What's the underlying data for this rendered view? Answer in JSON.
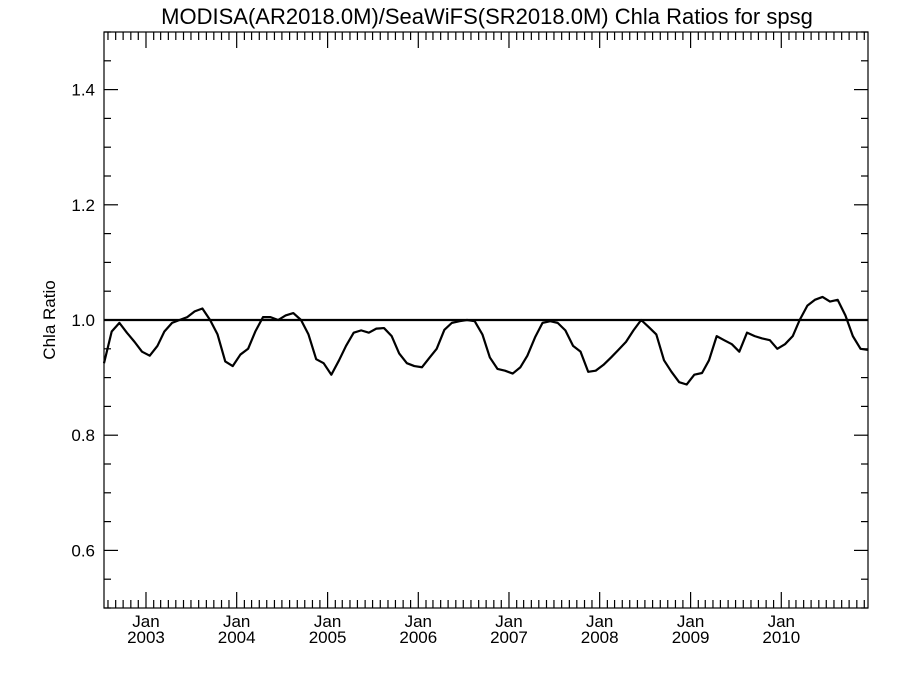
{
  "chart_data": {
    "type": "line",
    "title": "MODISA(AR2018.0M)/SeaWiFS(SR2018.0M)  Chla Ratios for spsg",
    "xlabel": "",
    "ylabel": "Chla Ratio",
    "xlim": [
      "2002-07-16",
      "2010-12-16"
    ],
    "ylim": [
      0.5,
      1.5
    ],
    "yticks": [
      {
        "value": 0.6,
        "label": "0.6"
      },
      {
        "value": 0.8,
        "label": "0.8"
      },
      {
        "value": 1.0,
        "label": "1.0"
      },
      {
        "value": 1.2,
        "label": "1.2"
      },
      {
        "value": 1.4,
        "label": "1.4"
      }
    ],
    "xticks": [
      {
        "date": "2003-01-01",
        "month": "Jan",
        "year": "2003"
      },
      {
        "date": "2004-01-01",
        "month": "Jan",
        "year": "2004"
      },
      {
        "date": "2005-01-01",
        "month": "Jan",
        "year": "2005"
      },
      {
        "date": "2006-01-01",
        "month": "Jan",
        "year": "2006"
      },
      {
        "date": "2007-01-01",
        "month": "Jan",
        "year": "2007"
      },
      {
        "date": "2008-01-01",
        "month": "Jan",
        "year": "2008"
      },
      {
        "date": "2009-01-01",
        "month": "Jan",
        "year": "2009"
      },
      {
        "date": "2010-01-01",
        "month": "Jan",
        "year": "2010"
      }
    ],
    "reference_line": {
      "y": 1.0
    },
    "series": [
      {
        "x": [
          "2002-07-16",
          "2002-08-16",
          "2002-09-16",
          "2002-10-16",
          "2002-11-16",
          "2002-12-16",
          "2003-01-16",
          "2003-02-16",
          "2003-03-16",
          "2003-04-16",
          "2003-05-16",
          "2003-06-16",
          "2003-07-16",
          "2003-08-16",
          "2003-09-16",
          "2003-10-16",
          "2003-11-16",
          "2003-12-16",
          "2004-01-16",
          "2004-02-16",
          "2004-03-16",
          "2004-04-16",
          "2004-05-16",
          "2004-06-16",
          "2004-07-16",
          "2004-08-16",
          "2004-09-16",
          "2004-10-16",
          "2004-11-16",
          "2004-12-16",
          "2005-01-16",
          "2005-02-16",
          "2005-03-16",
          "2005-04-16",
          "2005-05-16",
          "2005-06-16",
          "2005-07-16",
          "2005-08-16",
          "2005-09-16",
          "2005-10-16",
          "2005-11-16",
          "2005-12-16",
          "2006-01-16",
          "2006-02-16",
          "2006-03-16",
          "2006-04-16",
          "2006-05-16",
          "2006-06-16",
          "2006-07-16",
          "2006-08-16",
          "2006-09-16",
          "2006-10-16",
          "2006-11-16",
          "2006-12-16",
          "2007-01-16",
          "2007-02-16",
          "2007-03-16",
          "2007-04-16",
          "2007-05-16",
          "2007-06-16",
          "2007-07-16",
          "2007-08-16",
          "2007-09-16",
          "2007-10-16",
          "2007-11-16",
          "2007-12-16",
          "2008-01-16",
          "2008-02-16",
          "2008-03-16",
          "2008-04-16",
          "2008-05-16",
          "2008-06-16",
          "2008-07-16",
          "2008-08-16",
          "2008-09-16",
          "2008-10-16",
          "2008-11-16",
          "2008-12-16",
          "2009-01-16",
          "2009-02-16",
          "2009-03-16",
          "2009-04-16",
          "2009-05-16",
          "2009-06-16",
          "2009-07-16",
          "2009-08-16",
          "2009-09-16",
          "2009-10-16",
          "2009-11-16",
          "2009-12-16",
          "2010-01-16",
          "2010-02-16",
          "2010-03-16",
          "2010-04-16",
          "2010-05-16",
          "2010-06-16",
          "2010-07-16",
          "2010-08-16",
          "2010-09-16",
          "2010-10-16",
          "2010-11-16",
          "2010-12-16"
        ],
        "values": [
          0.925,
          0.98,
          0.995,
          0.978,
          0.962,
          0.945,
          0.938,
          0.955,
          0.98,
          0.995,
          1.0,
          1.005,
          1.015,
          1.02,
          1.0,
          0.975,
          0.928,
          0.92,
          0.94,
          0.95,
          0.98,
          1.005,
          1.005,
          1.0,
          1.008,
          1.012,
          1.0,
          0.975,
          0.932,
          0.925,
          0.905,
          0.93,
          0.955,
          0.978,
          0.982,
          0.978,
          0.985,
          0.986,
          0.972,
          0.942,
          0.925,
          0.92,
          0.918,
          0.935,
          0.95,
          0.983,
          0.995,
          0.998,
          1.0,
          0.998,
          0.975,
          0.935,
          0.915,
          0.912,
          0.907,
          0.918,
          0.938,
          0.97,
          0.995,
          0.998,
          0.995,
          0.982,
          0.955,
          0.945,
          0.91,
          0.912,
          0.922,
          0.935,
          0.948,
          0.962,
          0.982,
          1.0,
          0.988,
          0.975,
          0.93,
          0.91,
          0.892,
          0.888,
          0.905,
          0.908,
          0.93,
          0.972,
          0.965,
          0.958,
          0.945,
          0.978,
          0.972,
          0.968,
          0.965,
          0.95,
          0.958,
          0.972,
          1.0,
          1.025,
          1.035,
          1.04,
          1.032,
          1.035,
          1.008,
          0.972,
          0.95,
          0.948
        ],
        "color": "#000000"
      }
    ]
  }
}
